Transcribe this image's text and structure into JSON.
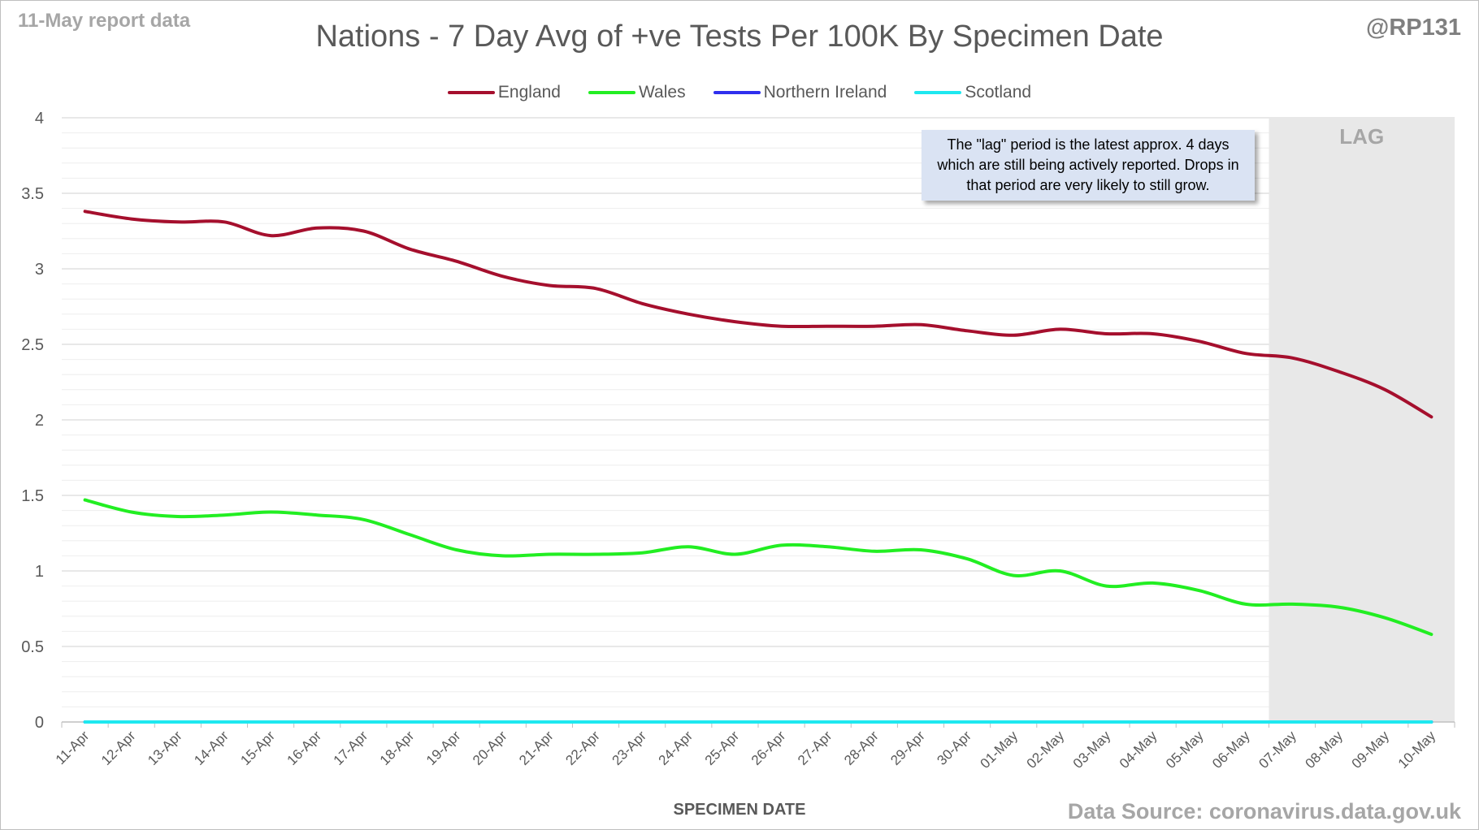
{
  "header": {
    "report_date": "11-May report data",
    "handle": "@RP131",
    "source": "Data Source: coronavirus.data.gov.uk"
  },
  "annotation": {
    "lag_label": "LAG",
    "lag_start": "07-May",
    "lag_end": "10-May",
    "note": "The \"lag\" period is the latest approx. 4 days which are still being actively reported. Drops in that period are very likely to still grow."
  },
  "colors": {
    "England": "#a50f2d",
    "Wales": "#22ee22",
    "Northern Ireland": "#2f2fee",
    "Scotland": "#1ee8f0",
    "lag_shade": "#e8e8e8",
    "gridline": "#d9d9d9"
  },
  "chart_data": {
    "type": "line",
    "title": "Nations - 7 Day Avg of +ve Tests Per 100K By Specimen Date",
    "xlabel": "SPECIMEN DATE",
    "ylabel": "",
    "ylim": [
      0,
      4
    ],
    "yticks": [
      "0",
      "0.5",
      "1",
      "1.5",
      "2",
      "2.5",
      "3",
      "3.5",
      "4"
    ],
    "grid": true,
    "legend_position": "top",
    "categories": [
      "11-Apr",
      "12-Apr",
      "13-Apr",
      "14-Apr",
      "15-Apr",
      "16-Apr",
      "17-Apr",
      "18-Apr",
      "19-Apr",
      "20-Apr",
      "21-Apr",
      "22-Apr",
      "23-Apr",
      "24-Apr",
      "25-Apr",
      "26-Apr",
      "27-Apr",
      "28-Apr",
      "29-Apr",
      "30-Apr",
      "01-May",
      "02-May",
      "03-May",
      "04-May",
      "05-May",
      "06-May",
      "07-May",
      "08-May",
      "09-May",
      "10-May"
    ],
    "series": [
      {
        "name": "England",
        "values": [
          3.38,
          3.33,
          3.31,
          3.31,
          3.22,
          3.27,
          3.25,
          3.13,
          3.05,
          2.95,
          2.89,
          2.87,
          2.77,
          2.7,
          2.65,
          2.62,
          2.62,
          2.62,
          2.63,
          2.59,
          2.56,
          2.6,
          2.57,
          2.57,
          2.52,
          2.44,
          2.41,
          2.32,
          2.2,
          2.02
        ]
      },
      {
        "name": "Wales",
        "values": [
          1.47,
          1.39,
          1.36,
          1.37,
          1.39,
          1.37,
          1.34,
          1.24,
          1.14,
          1.1,
          1.11,
          1.11,
          1.12,
          1.16,
          1.11,
          1.17,
          1.16,
          1.13,
          1.14,
          1.08,
          0.97,
          1.0,
          0.9,
          0.92,
          0.87,
          0.78,
          0.78,
          0.76,
          0.69,
          0.58
        ]
      },
      {
        "name": "Northern Ireland",
        "values": [
          0,
          0,
          0,
          0,
          0,
          0,
          0,
          0,
          0,
          0,
          0,
          0,
          0,
          0,
          0,
          0,
          0,
          0,
          0,
          0,
          0,
          0,
          0,
          0,
          0,
          0,
          0,
          0,
          0,
          0
        ]
      },
      {
        "name": "Scotland",
        "values": [
          0,
          0,
          0,
          0,
          0,
          0,
          0,
          0,
          0,
          0,
          0,
          0,
          0,
          0,
          0,
          0,
          0,
          0,
          0,
          0,
          0,
          0,
          0,
          0,
          0,
          0,
          0,
          0,
          0,
          0
        ]
      }
    ]
  }
}
